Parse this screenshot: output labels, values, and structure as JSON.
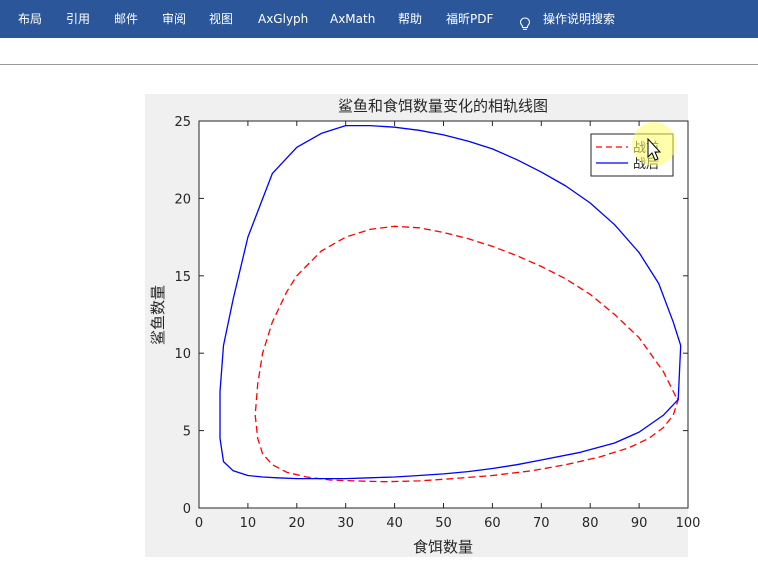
{
  "ribbon": {
    "tabs": [
      {
        "id": "layout",
        "label": "布局"
      },
      {
        "id": "references",
        "label": "引用"
      },
      {
        "id": "mailings",
        "label": "邮件"
      },
      {
        "id": "review",
        "label": "审阅"
      },
      {
        "id": "view",
        "label": "视图"
      },
      {
        "id": "axglyph",
        "label": "AxGlyph"
      },
      {
        "id": "axmath",
        "label": "AxMath"
      },
      {
        "id": "help",
        "label": "帮助"
      },
      {
        "id": "foxit",
        "label": "福昕PDF"
      }
    ],
    "tell_me": {
      "icon": "lightbulb-icon",
      "label": "操作说明搜索"
    },
    "background_color": "#2b579a"
  },
  "chart_data": {
    "type": "line",
    "title": "鲨鱼和食饵数量变化的相轨线图",
    "xlabel": "食饵数量",
    "ylabel": "鲨鱼数量",
    "xlim": [
      0,
      100
    ],
    "ylim": [
      0,
      25
    ],
    "xticks": [
      0,
      10,
      20,
      30,
      40,
      50,
      60,
      70,
      80,
      90,
      100
    ],
    "yticks": [
      0,
      5,
      10,
      15,
      20,
      25
    ],
    "grid": false,
    "legend": {
      "position": "top-right",
      "entries": [
        "战前",
        "战后"
      ]
    },
    "series": [
      {
        "name": "战前",
        "color": "#ff0000",
        "style": "dashed",
        "x": [
          97.5,
          95,
          90,
          85,
          80,
          75,
          70,
          65,
          60,
          55,
          50,
          45,
          40,
          35,
          30,
          25,
          20,
          18,
          15,
          13,
          12,
          11.5,
          12,
          13,
          15,
          18,
          22,
          27,
          32,
          38,
          45,
          52,
          60,
          68,
          75,
          82,
          88,
          92,
          95,
          97,
          98,
          97.5
        ],
        "y": [
          7.2,
          8.8,
          11,
          12.5,
          13.8,
          14.8,
          15.6,
          16.3,
          16.9,
          17.4,
          17.8,
          18.1,
          18.2,
          18.0,
          17.5,
          16.6,
          15.0,
          14.0,
          12.0,
          10.0,
          8.0,
          6.0,
          4.5,
          3.5,
          2.8,
          2.3,
          2.0,
          1.8,
          1.75,
          1.7,
          1.75,
          1.9,
          2.1,
          2.4,
          2.8,
          3.3,
          3.9,
          4.5,
          5.2,
          6.0,
          7.0,
          7.2
        ]
      },
      {
        "name": "战后",
        "color": "#0000ff",
        "style": "solid",
        "x": [
          98.5,
          97,
          94,
          90,
          85,
          80,
          75,
          70,
          65,
          60,
          55,
          50,
          45,
          40,
          35,
          30,
          25,
          20,
          15,
          10,
          7,
          5,
          4.3,
          4.3,
          5,
          7,
          10,
          13,
          16,
          20,
          25,
          30,
          35,
          40,
          45,
          50,
          55,
          60,
          65,
          70,
          78,
          85,
          90,
          95,
          98,
          98.5
        ],
        "y": [
          10.5,
          12.0,
          14.5,
          16.5,
          18.3,
          19.7,
          20.8,
          21.7,
          22.5,
          23.2,
          23.7,
          24.1,
          24.4,
          24.6,
          24.7,
          24.7,
          24.2,
          23.3,
          21.6,
          17.5,
          13.5,
          10.5,
          7.5,
          4.5,
          3.0,
          2.4,
          2.1,
          2.0,
          1.95,
          1.9,
          1.9,
          1.9,
          1.95,
          2.0,
          2.1,
          2.2,
          2.35,
          2.55,
          2.8,
          3.1,
          3.6,
          4.2,
          4.9,
          6.0,
          7.0,
          10.5
        ]
      }
    ]
  }
}
